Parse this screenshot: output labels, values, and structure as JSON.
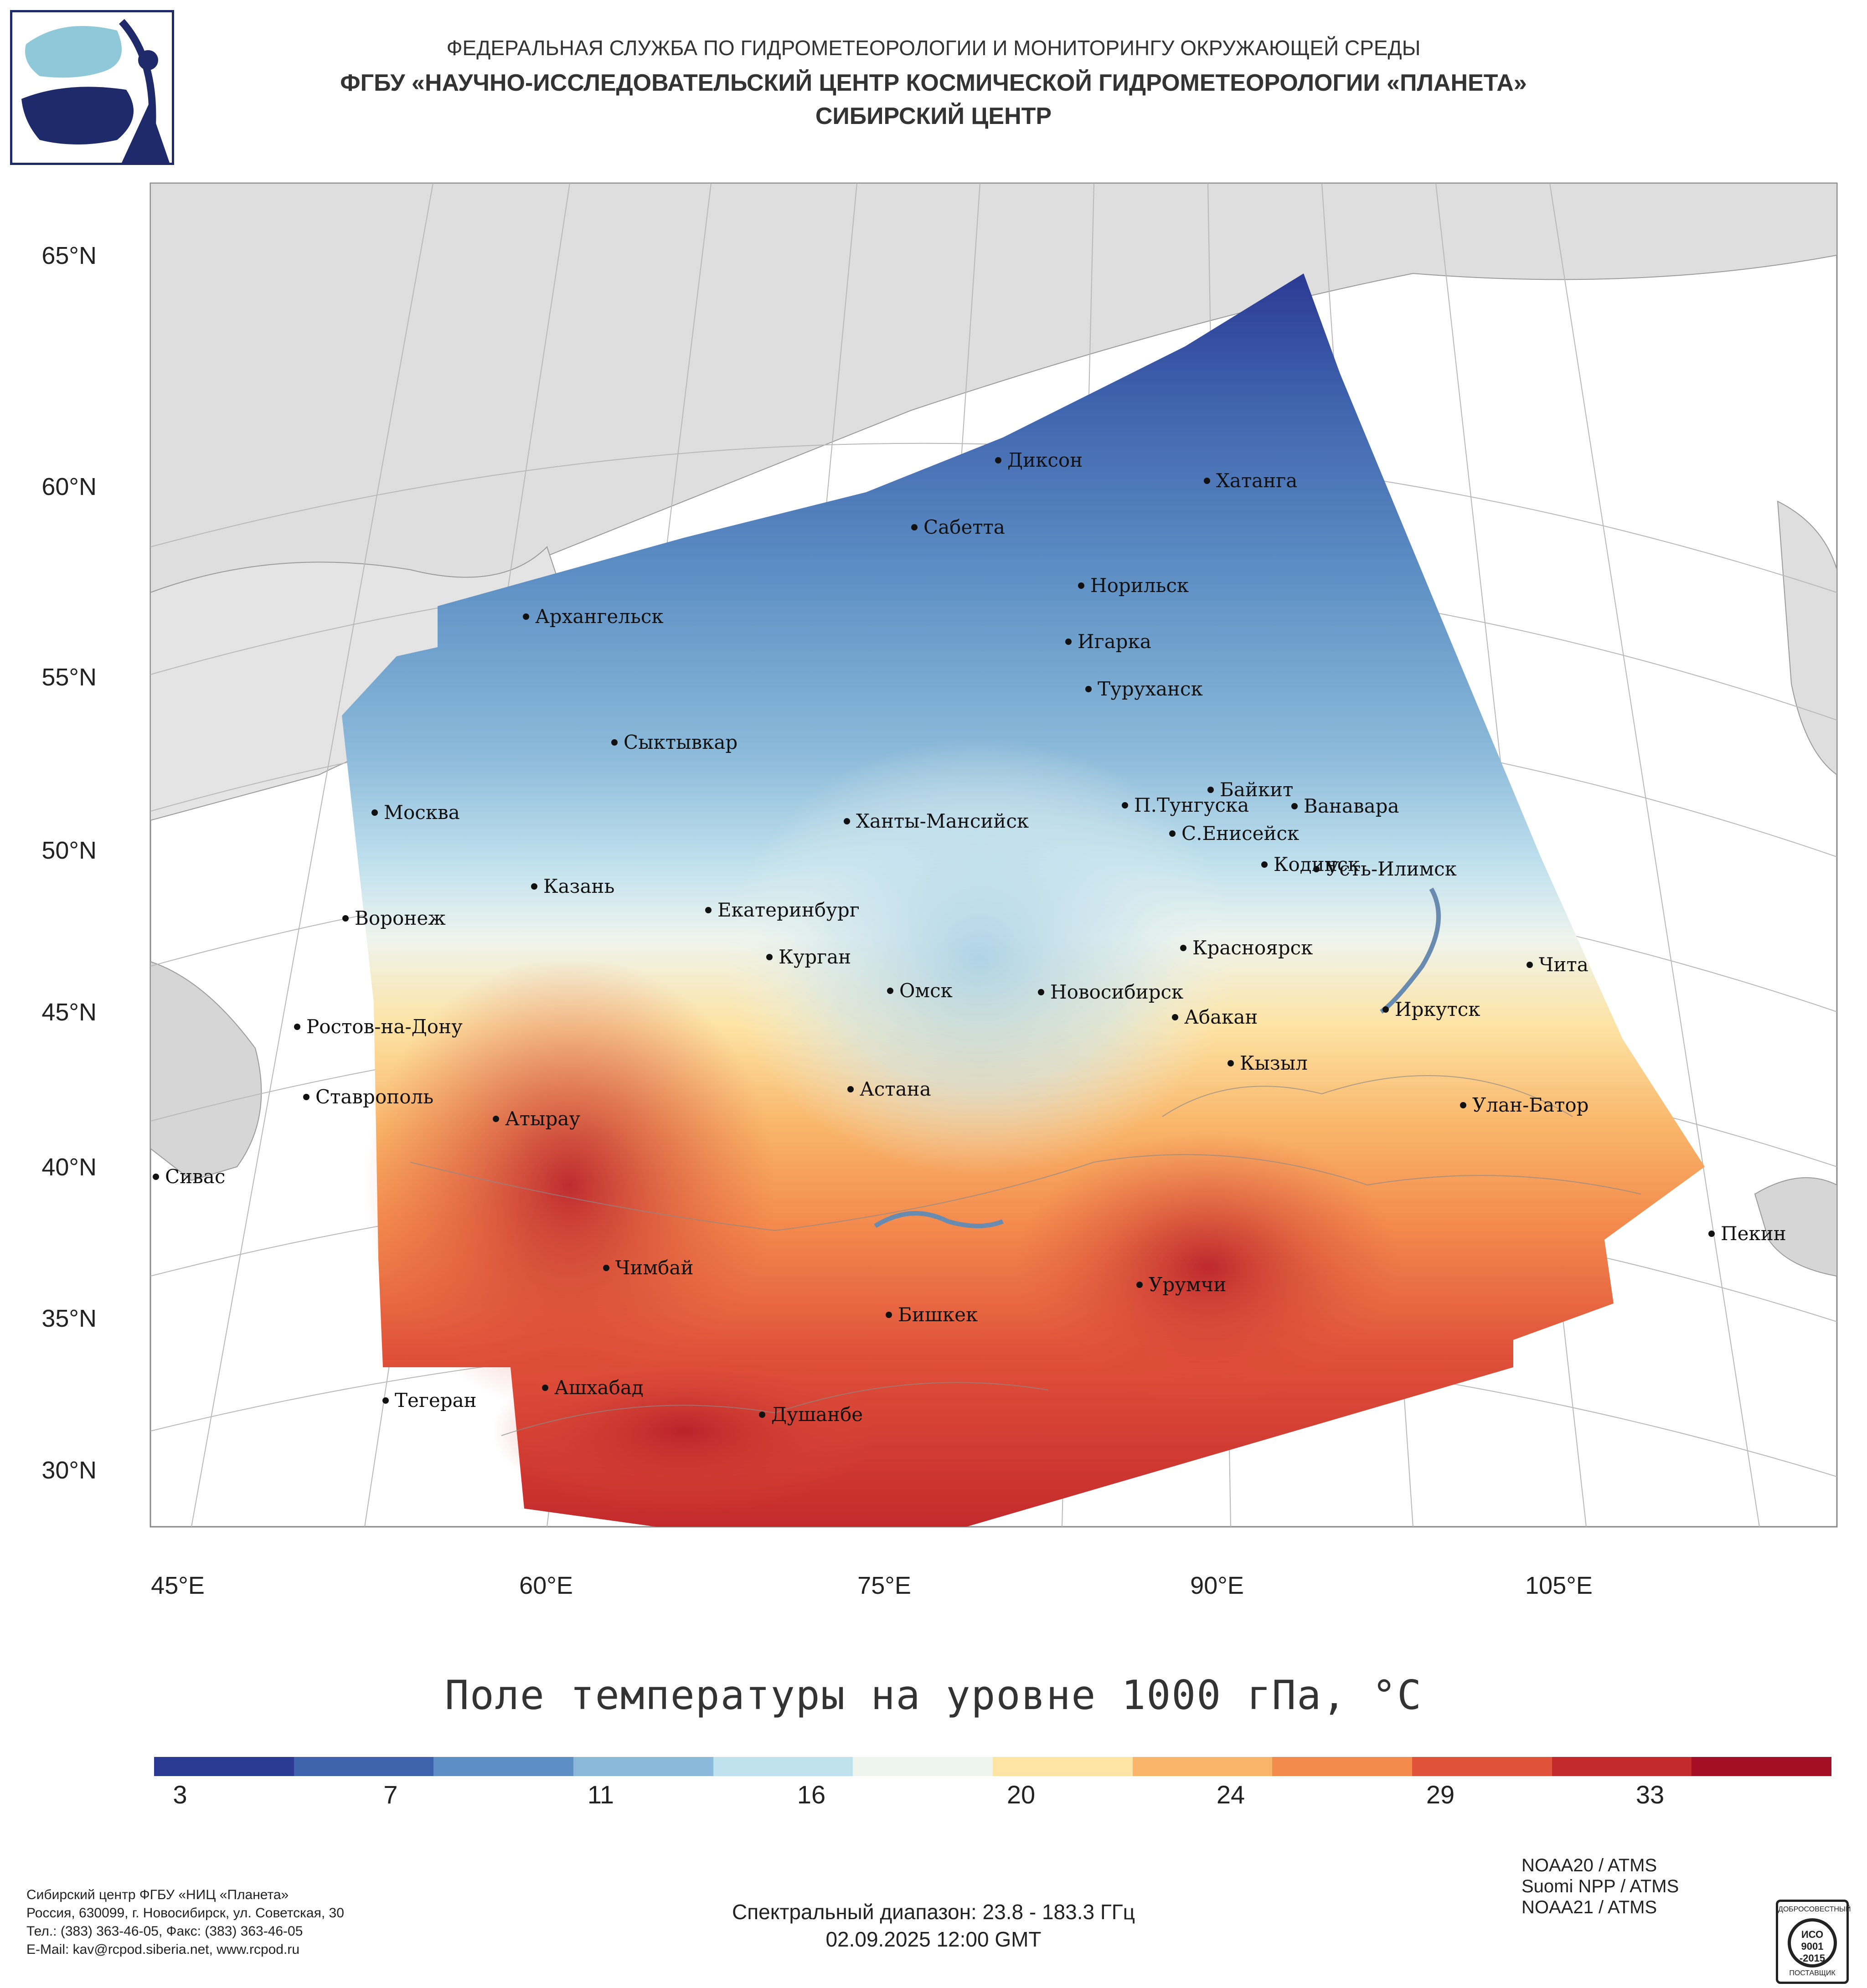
{
  "header": {
    "line1": "ФЕДЕРАЛЬНАЯ СЛУЖБА ПО ГИДРОМЕТЕОРОЛОГИИ И МОНИТОРИНГУ ОКРУЖАЮЩЕЙ СРЕДЫ",
    "line2": "ФГБУ «НАУЧНО-ИССЛЕДОВАТЕЛЬСКИЙ ЦЕНТР КОСМИЧЕСКОЙ ГИДРОМЕТЕОРОЛОГИИ «ПЛАНЕТА»",
    "line3": "СИБИРСКИЙ ЦЕНТР"
  },
  "map": {
    "title": "Поле температуры на уровне 1000 гПа, °C",
    "lat_labels": [
      "65°N",
      "60°N",
      "55°N",
      "50°N",
      "45°N",
      "40°N",
      "35°N",
      "30°N"
    ],
    "lon_labels": [
      "45°E",
      "60°E",
      "75°E",
      "90°E",
      "105°E"
    ],
    "cities": [
      "Диксон",
      "Хатанга",
      "Сабетта",
      "Норильск",
      "Архангельск",
      "Игарка",
      "Туруханск",
      "Сыктывкар",
      "Байкит",
      "Москва",
      "П.Тунгуска",
      "Ванавара",
      "Ханты-Мансийск",
      "С.Енисейск",
      "Кодинск",
      "Усть-Илимск",
      "Казань",
      "Екатеринбург",
      "Воронеж",
      "Красноярск",
      "Курган",
      "Чита",
      "Омск",
      "Новосибирск",
      "Иркутск",
      "Абакан",
      "Ростов-на-Дону",
      "Кызыл",
      "Астана",
      "Ставрополь",
      "Улан-Батор",
      "Атырау",
      "Сивас",
      "Пекин",
      "Чимбай",
      "Урумчи",
      "Бишкек",
      "Ашхабад",
      "Тегеран",
      "Душанбе"
    ]
  },
  "colorbar": {
    "min": 2,
    "max": 36,
    "ticks": [
      "3",
      "7",
      "11",
      "16",
      "20",
      "24",
      "29",
      "33"
    ],
    "colors": [
      "#2b3a93",
      "#3f62ad",
      "#5d8fc4",
      "#8bb9d9",
      "#bfe0ed",
      "#eef4ee",
      "#fde3a4",
      "#f9b66a",
      "#f38a4d",
      "#e0523a",
      "#c42a2c",
      "#a50f26"
    ]
  },
  "footer": {
    "contact": [
      "Сибирский центр ФГБУ «НИЦ «Планета»",
      "Россия, 630099, г. Новосибирск, ул. Советская, 30",
      "Тел.: (383) 363-46-05, Факс: (383) 363-46-05",
      "E-Mail: kav@rcpod.siberia.net, www.rcpod.ru"
    ],
    "spectral": "Спектральный диапазон: 23.8 - 183.3 ГГц",
    "datetime": "02.09.2025 12:00 GMT",
    "satellites": [
      "NOAA20 / ATMS",
      "Suomi NPP / ATMS",
      "NOAA21 / ATMS"
    ],
    "iso": {
      "top": "ДОБРОСОВЕСТНЫЙ",
      "l1": "ИСО",
      "l2": "9001",
      "l3": "-2015",
      "bottom": "ПОСТАВЩИК"
    }
  }
}
